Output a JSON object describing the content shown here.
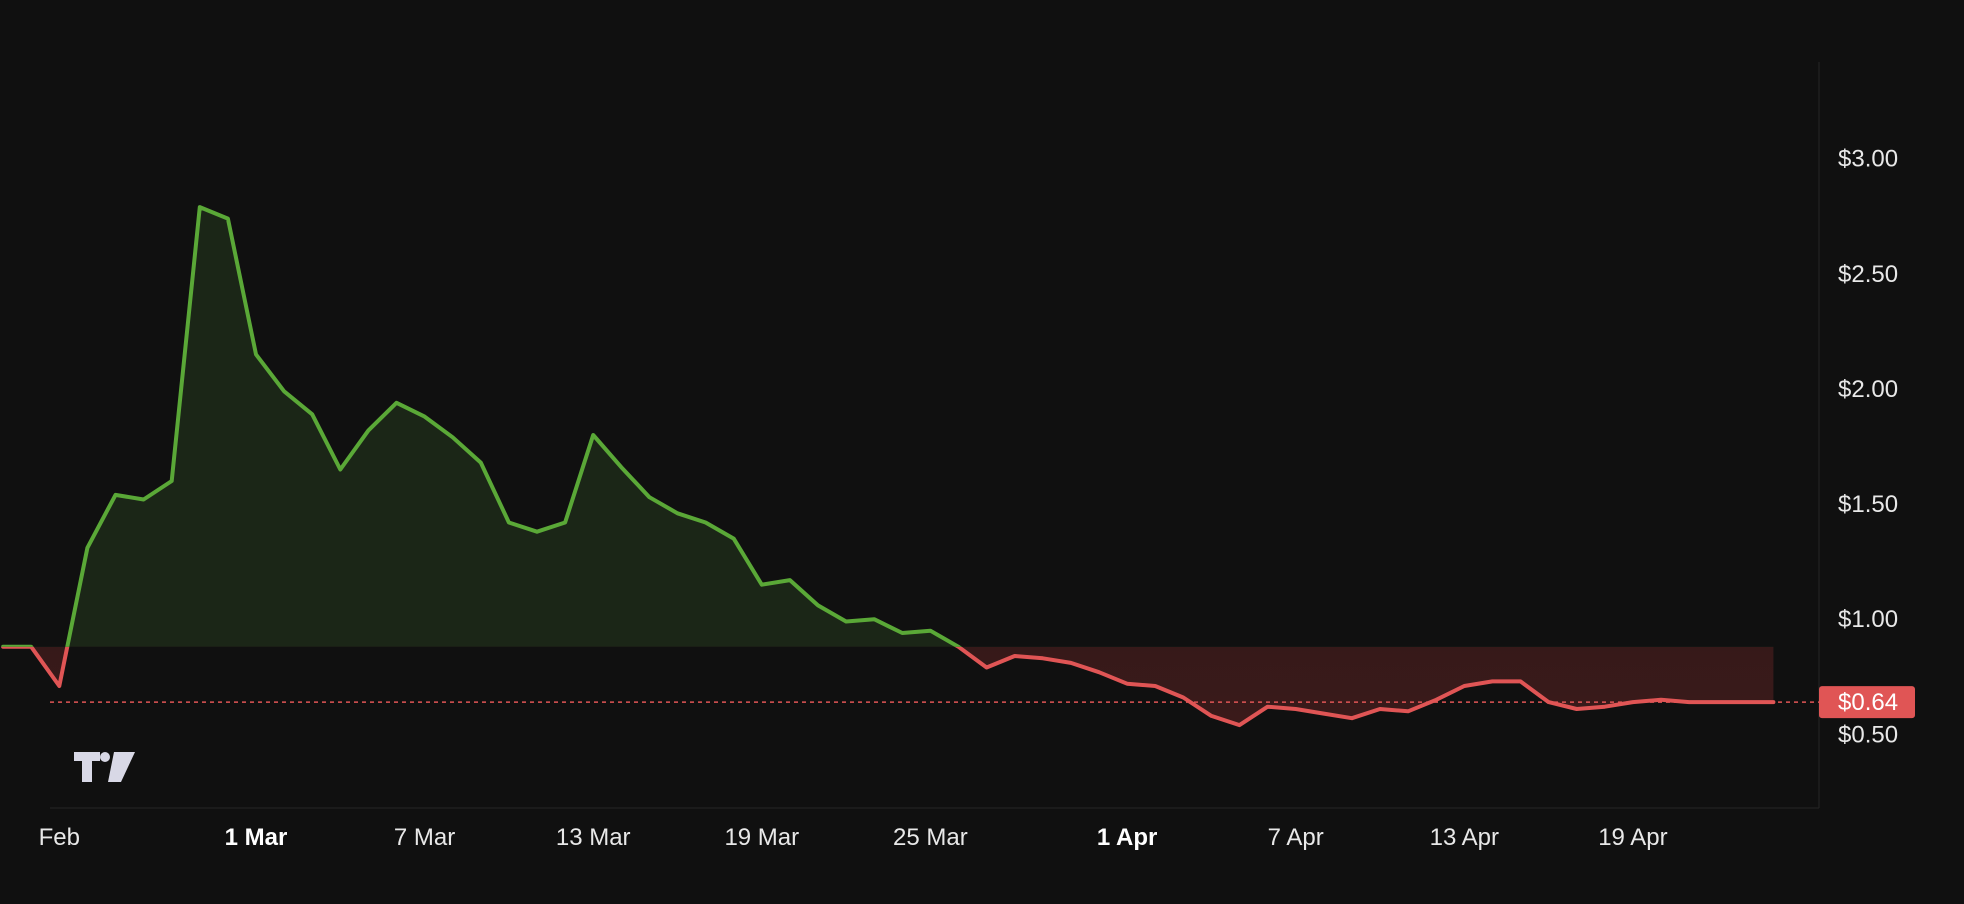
{
  "chart_data": {
    "type": "area",
    "baseline_value": 0.88,
    "current_price": 0.64,
    "current_price_label": "$0.64",
    "ylim": [
      0.18,
      3.42
    ],
    "y_ticks": [
      {
        "value": 3.0,
        "label": "$3.00"
      },
      {
        "value": 2.5,
        "label": "$2.50"
      },
      {
        "value": 2.0,
        "label": "$2.00"
      },
      {
        "value": 1.5,
        "label": "$1.50"
      },
      {
        "value": 1.0,
        "label": "$1.00"
      },
      {
        "value": 0.5,
        "label": "$0.50"
      }
    ],
    "x_domain": [
      "2024-02-20",
      "2024-04-26"
    ],
    "x_ticks": [
      {
        "date": "2024-02-23",
        "label": "Feb",
        "bold": false
      },
      {
        "date": "2024-03-01",
        "label": "1 Mar",
        "bold": true
      },
      {
        "date": "2024-03-07",
        "label": "7 Mar",
        "bold": false
      },
      {
        "date": "2024-03-13",
        "label": "13 Mar",
        "bold": false
      },
      {
        "date": "2024-03-19",
        "label": "19 Mar",
        "bold": false
      },
      {
        "date": "2024-03-25",
        "label": "25 Mar",
        "bold": false
      },
      {
        "date": "2024-04-01",
        "label": "1 Apr",
        "bold": true
      },
      {
        "date": "2024-04-07",
        "label": "7 Apr",
        "bold": false
      },
      {
        "date": "2024-04-13",
        "label": "13 Apr",
        "bold": false
      },
      {
        "date": "2024-04-19",
        "label": "19 Apr",
        "bold": false
      }
    ],
    "series": [
      {
        "x": [
          "2024-02-21",
          "2024-02-22",
          "2024-02-23",
          "2024-02-24",
          "2024-02-25",
          "2024-02-26",
          "2024-02-27",
          "2024-02-28",
          "2024-02-29",
          "2024-03-01",
          "2024-03-02",
          "2024-03-03",
          "2024-03-04",
          "2024-03-05",
          "2024-03-06",
          "2024-03-07",
          "2024-03-08",
          "2024-03-09",
          "2024-03-10",
          "2024-03-11",
          "2024-03-12",
          "2024-03-13",
          "2024-03-14",
          "2024-03-15",
          "2024-03-16",
          "2024-03-17",
          "2024-03-18",
          "2024-03-19",
          "2024-03-20",
          "2024-03-21",
          "2024-03-22",
          "2024-03-23",
          "2024-03-24",
          "2024-03-25",
          "2024-03-26",
          "2024-03-27",
          "2024-03-28",
          "2024-03-29",
          "2024-03-30",
          "2024-03-31",
          "2024-04-01",
          "2024-04-02",
          "2024-04-03",
          "2024-04-04",
          "2024-04-05",
          "2024-04-06",
          "2024-04-07",
          "2024-04-08",
          "2024-04-09",
          "2024-04-10",
          "2024-04-11",
          "2024-04-12",
          "2024-04-13",
          "2024-04-14",
          "2024-04-15",
          "2024-04-16",
          "2024-04-17",
          "2024-04-18",
          "2024-04-19",
          "2024-04-20",
          "2024-04-21",
          "2024-04-22",
          "2024-04-23",
          "2024-04-24"
        ],
        "values": [
          0.88,
          0.88,
          0.71,
          1.31,
          1.54,
          1.52,
          1.6,
          2.79,
          2.74,
          2.15,
          1.99,
          1.89,
          1.65,
          1.82,
          1.94,
          1.88,
          1.79,
          1.68,
          1.42,
          1.38,
          1.42,
          1.8,
          1.66,
          1.53,
          1.46,
          1.42,
          1.35,
          1.15,
          1.17,
          1.06,
          0.99,
          1.0,
          0.94,
          0.95,
          0.88,
          0.79,
          0.84,
          0.83,
          0.81,
          0.77,
          0.72,
          0.71,
          0.66,
          0.58,
          0.54,
          0.62,
          0.61,
          0.59,
          0.57,
          0.61,
          0.6,
          0.65,
          0.71,
          0.73,
          0.73,
          0.64,
          0.61,
          0.62,
          0.64,
          0.65,
          0.64,
          0.64,
          0.64,
          0.64
        ]
      }
    ],
    "colors": {
      "background": "#101010",
      "up_line": "#5aa837",
      "down_line": "#e05555",
      "up_fill": "#1b2617",
      "down_fill": "#2a1616",
      "axis_text": "#e8e8e8",
      "price_badge": "#e05555",
      "gridline": "#262626"
    },
    "watermark_icon": "tradingview-logo-icon",
    "grid": false,
    "legend": "none"
  }
}
